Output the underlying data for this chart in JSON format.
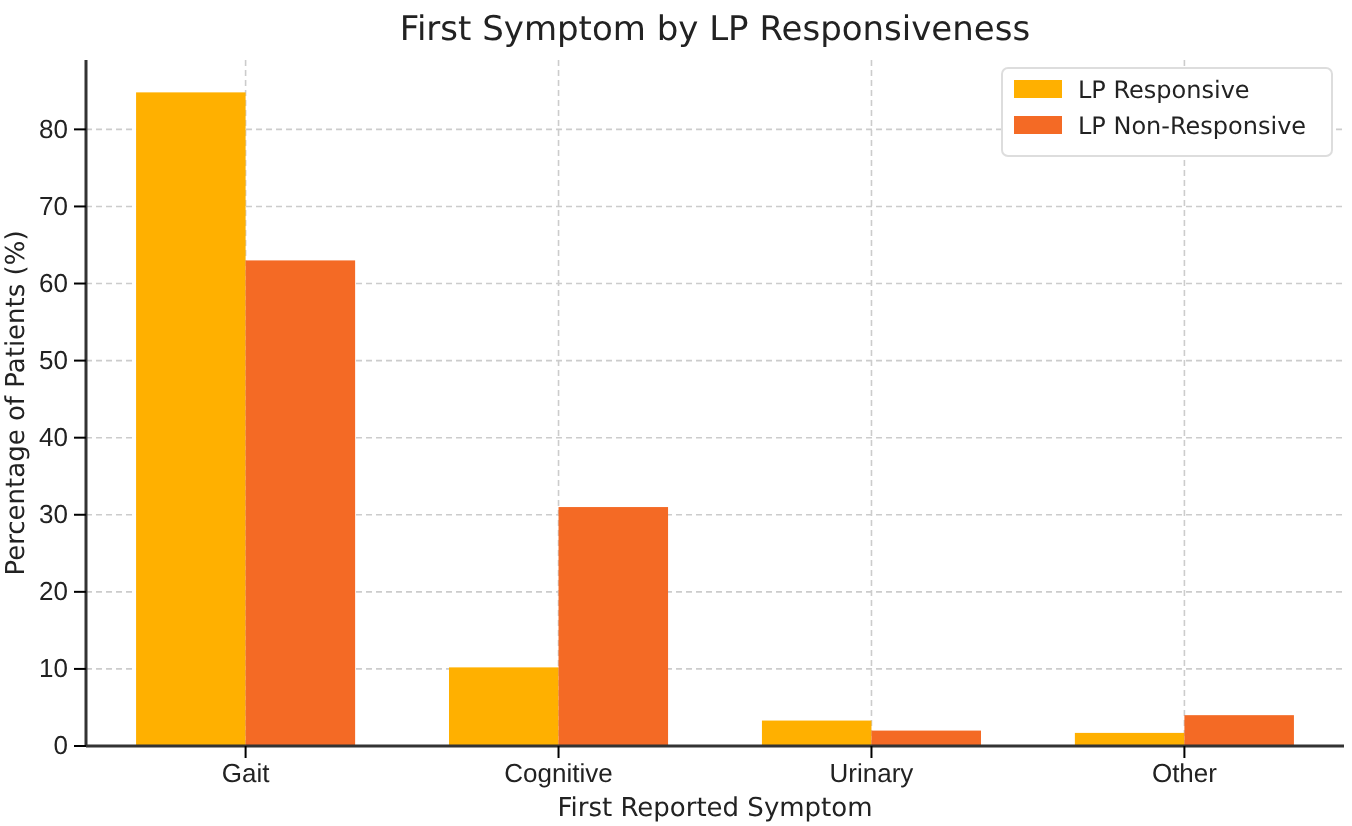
{
  "chart_data": {
    "type": "bar",
    "title": "First Symptom by LP Responsiveness",
    "xlabel": "First Reported Symptom",
    "ylabel": "Percentage of Patients (%)",
    "categories": [
      "Gait",
      "Cognitive",
      "Urinary",
      "Other"
    ],
    "series": [
      {
        "name": "LP Responsive",
        "color": "#ffb000",
        "values": [
          84.8,
          10.2,
          3.3,
          1.7
        ]
      },
      {
        "name": "LP Non-Responsive",
        "color": "#f46a25",
        "values": [
          63,
          31,
          2,
          4
        ]
      }
    ],
    "ylim": [
      0,
      89
    ],
    "yticks": [
      0,
      10,
      20,
      30,
      40,
      50,
      60,
      70,
      80
    ],
    "grid": true,
    "legend": "top right"
  }
}
